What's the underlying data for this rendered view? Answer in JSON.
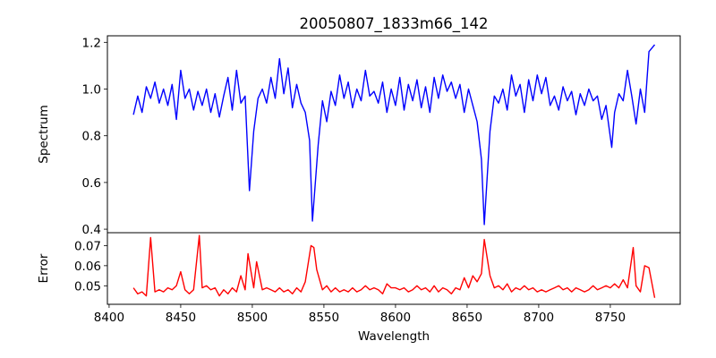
{
  "chart_data": [
    {
      "type": "line",
      "title": "20050807_1833m66_142",
      "xlabel": "",
      "ylabel": "Spectrum",
      "xlim": [
        8398.8,
        8798.8
      ],
      "ylim": [
        0.385,
        1.228
      ],
      "yticks": [
        0.4,
        0.6,
        0.8,
        1.0,
        1.2
      ],
      "ytick_labels": [
        "0.4",
        "0.6",
        "0.8",
        "1.0",
        "1.2"
      ],
      "grid": false,
      "series": [
        {
          "name": "Spectrum",
          "color": "#0000ff",
          "x": [
            8417,
            8420,
            8423,
            8426,
            8429,
            8432,
            8435,
            8438,
            8441,
            8444,
            8447,
            8450,
            8453,
            8456,
            8459,
            8462,
            8465,
            8468,
            8471,
            8474,
            8477,
            8480,
            8483,
            8486,
            8489,
            8492,
            8495,
            8498,
            8501,
            8504,
            8507,
            8510,
            8513,
            8516,
            8519,
            8522,
            8525,
            8528,
            8531,
            8534,
            8537,
            8540,
            8542,
            8546,
            8549,
            8552,
            8555,
            8558,
            8561,
            8564,
            8567,
            8570,
            8573,
            8576,
            8579,
            8582,
            8585,
            8588,
            8591,
            8594,
            8597,
            8600,
            8603,
            8606,
            8609,
            8612,
            8615,
            8618,
            8621,
            8624,
            8627,
            8630,
            8633,
            8636,
            8639,
            8642,
            8645,
            8648,
            8651,
            8654,
            8657,
            8660,
            8662,
            8666,
            8669,
            8672,
            8675,
            8678,
            8681,
            8684,
            8687,
            8690,
            8693,
            8696,
            8699,
            8702,
            8705,
            8708,
            8711,
            8714,
            8717,
            8720,
            8723,
            8726,
            8729,
            8732,
            8735,
            8738,
            8741,
            8744,
            8747,
            8751,
            8753,
            8756,
            8759,
            8762,
            8765,
            8768,
            8771,
            8774,
            8777,
            8781
          ],
          "y": [
            0.89,
            0.97,
            0.9,
            1.01,
            0.96,
            1.03,
            0.94,
            1.0,
            0.93,
            1.02,
            0.87,
            1.08,
            0.96,
            1.0,
            0.91,
            0.99,
            0.93,
            1.0,
            0.9,
            0.98,
            0.88,
            0.97,
            1.05,
            0.91,
            1.08,
            0.94,
            0.97,
            0.565,
            0.82,
            0.96,
            1.0,
            0.94,
            1.05,
            0.96,
            1.13,
            0.98,
            1.09,
            0.92,
            1.02,
            0.94,
            0.9,
            0.78,
            0.435,
            0.76,
            0.95,
            0.86,
            0.99,
            0.93,
            1.06,
            0.96,
            1.03,
            0.92,
            1.0,
            0.95,
            1.08,
            0.97,
            0.99,
            0.94,
            1.03,
            0.9,
            1.0,
            0.93,
            1.05,
            0.91,
            1.02,
            0.95,
            1.04,
            0.92,
            1.01,
            0.9,
            1.05,
            0.96,
            1.06,
            0.99,
            1.03,
            0.96,
            1.02,
            0.9,
            1.0,
            0.93,
            0.86,
            0.7,
            0.42,
            0.82,
            0.97,
            0.94,
            1.0,
            0.91,
            1.06,
            0.97,
            1.02,
            0.9,
            1.04,
            0.95,
            1.06,
            0.98,
            1.05,
            0.93,
            0.97,
            0.91,
            1.01,
            0.95,
            0.99,
            0.89,
            0.98,
            0.93,
            1.0,
            0.95,
            0.97,
            0.87,
            0.93,
            0.75,
            0.9,
            0.98,
            0.95,
            1.08,
            0.97,
            0.85,
            1.0,
            0.9,
            1.16,
            1.19
          ]
        }
      ]
    },
    {
      "type": "line",
      "title": "",
      "xlabel": "Wavelength",
      "ylabel": "Error",
      "xlim": [
        8398.8,
        8798.8
      ],
      "ylim": [
        0.0408,
        0.0764
      ],
      "xticks": [
        8400,
        8450,
        8500,
        8550,
        8600,
        8650,
        8700,
        8750
      ],
      "xtick_labels": [
        "8400",
        "8450",
        "8500",
        "8550",
        "8600",
        "8650",
        "8700",
        "8750"
      ],
      "yticks": [
        0.05,
        0.06,
        0.07
      ],
      "ytick_labels": [
        "0.05",
        "0.06",
        "0.07"
      ],
      "grid": false,
      "series": [
        {
          "name": "Error",
          "color": "#ff0000",
          "x": [
            8417,
            8420,
            8423,
            8426,
            8429,
            8432,
            8435,
            8438,
            8441,
            8444,
            8447,
            8450,
            8453,
            8456,
            8459,
            8463,
            8465,
            8468,
            8471,
            8474,
            8477,
            8480,
            8483,
            8486,
            8489,
            8492,
            8495,
            8497,
            8501,
            8503,
            8507,
            8510,
            8513,
            8516,
            8519,
            8522,
            8525,
            8528,
            8531,
            8534,
            8537,
            8541,
            8543,
            8545,
            8549,
            8552,
            8555,
            8558,
            8561,
            8564,
            8567,
            8570,
            8573,
            8576,
            8579,
            8582,
            8585,
            8588,
            8591,
            8594,
            8597,
            8600,
            8603,
            8606,
            8609,
            8612,
            8615,
            8618,
            8621,
            8624,
            8627,
            8630,
            8633,
            8636,
            8639,
            8642,
            8645,
            8648,
            8651,
            8654,
            8657,
            8660,
            8662,
            8666,
            8669,
            8672,
            8675,
            8678,
            8681,
            8684,
            8687,
            8690,
            8693,
            8696,
            8699,
            8702,
            8705,
            8708,
            8711,
            8714,
            8717,
            8720,
            8723,
            8726,
            8729,
            8732,
            8735,
            8738,
            8741,
            8744,
            8747,
            8750,
            8753,
            8756,
            8759,
            8762,
            8766,
            8768,
            8771,
            8774,
            8777,
            8781
          ],
          "y": [
            0.049,
            0.046,
            0.047,
            0.045,
            0.074,
            0.047,
            0.048,
            0.047,
            0.049,
            0.048,
            0.05,
            0.057,
            0.048,
            0.046,
            0.048,
            0.075,
            0.049,
            0.05,
            0.048,
            0.049,
            0.045,
            0.048,
            0.046,
            0.049,
            0.047,
            0.055,
            0.048,
            0.066,
            0.049,
            0.062,
            0.048,
            0.049,
            0.048,
            0.047,
            0.049,
            0.047,
            0.048,
            0.046,
            0.049,
            0.047,
            0.052,
            0.07,
            0.069,
            0.058,
            0.048,
            0.05,
            0.047,
            0.049,
            0.047,
            0.048,
            0.047,
            0.049,
            0.047,
            0.048,
            0.05,
            0.048,
            0.049,
            0.048,
            0.046,
            0.051,
            0.049,
            0.049,
            0.048,
            0.049,
            0.047,
            0.048,
            0.05,
            0.048,
            0.049,
            0.047,
            0.05,
            0.047,
            0.049,
            0.048,
            0.046,
            0.049,
            0.048,
            0.054,
            0.049,
            0.055,
            0.052,
            0.056,
            0.073,
            0.055,
            0.049,
            0.05,
            0.048,
            0.051,
            0.047,
            0.049,
            0.048,
            0.05,
            0.048,
            0.049,
            0.047,
            0.048,
            0.047,
            0.048,
            0.049,
            0.05,
            0.048,
            0.049,
            0.047,
            0.049,
            0.048,
            0.047,
            0.048,
            0.05,
            0.048,
            0.049,
            0.05,
            0.049,
            0.051,
            0.049,
            0.053,
            0.049,
            0.069,
            0.05,
            0.047,
            0.06,
            0.059,
            0.044
          ]
        }
      ]
    }
  ]
}
